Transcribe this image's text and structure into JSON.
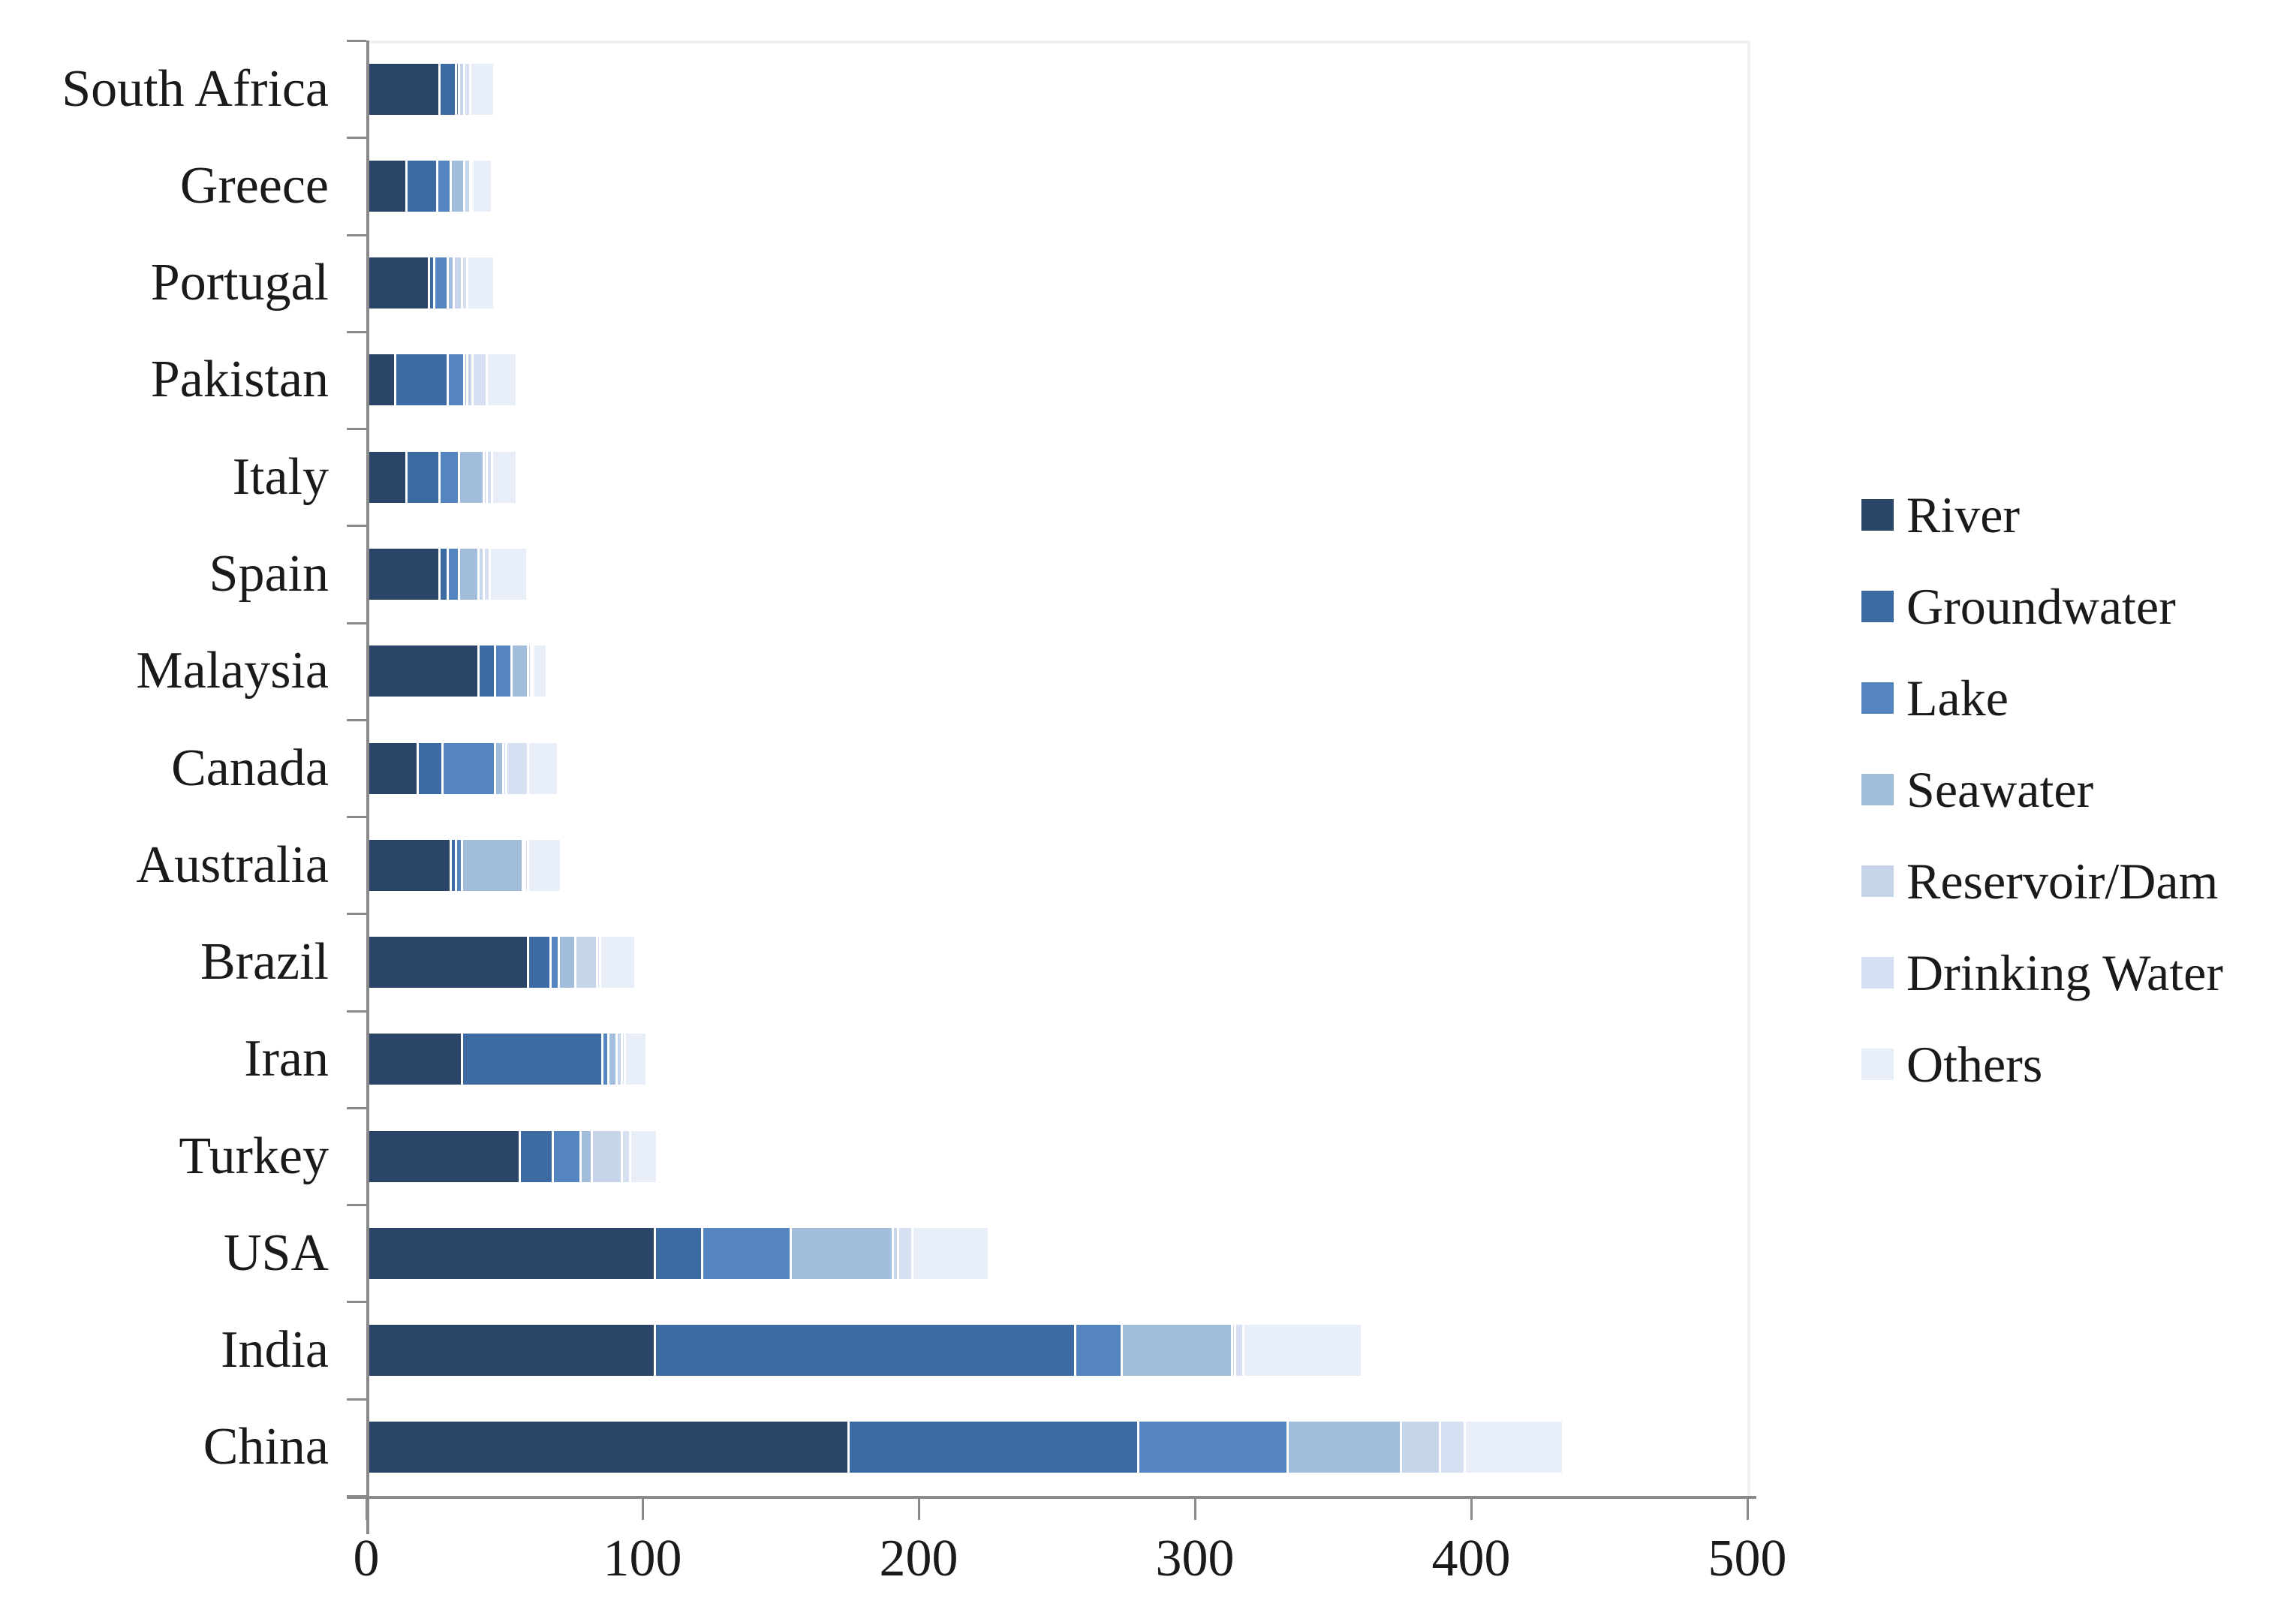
{
  "chart_data": {
    "type": "bar",
    "orientation": "horizontal",
    "stacked": true,
    "title": "",
    "xlabel": "",
    "ylabel": "",
    "xlim": [
      0,
      500
    ],
    "xticks": [
      "0",
      "100",
      "200",
      "300",
      "400",
      "500"
    ],
    "xtick_values": [
      0,
      100,
      200,
      300,
      400,
      500
    ],
    "grid": false,
    "legend_position": "right",
    "categories_top_to_bottom": [
      "South Africa",
      "Greece",
      "Portugal",
      "Pakistan",
      "Italy",
      "Spain",
      "Malaysia",
      "Canada",
      "Australia",
      "Brazil",
      "Iran",
      "Turkey",
      "USA",
      "India",
      "China"
    ],
    "series": [
      {
        "name": "River",
        "color": "#2A4567",
        "values": [
          27,
          15,
          23,
          11,
          15,
          27,
          41,
          19,
          31,
          59,
          35,
          56,
          105,
          105,
          175
        ]
      },
      {
        "name": "Groundwater",
        "color": "#3C6AA3",
        "values": [
          6,
          11,
          2,
          19,
          12,
          3,
          6,
          9,
          2,
          8,
          51,
          12,
          17,
          152,
          105
        ]
      },
      {
        "name": "Lake",
        "color": "#5585BE",
        "values": [
          1,
          5,
          5,
          6,
          7,
          4,
          6,
          19,
          2,
          3,
          2,
          10,
          32,
          17,
          54
        ]
      },
      {
        "name": "Seawater",
        "color": "#A3BDDC",
        "values": [
          0,
          5,
          2,
          1,
          9,
          7,
          6,
          3,
          22,
          6,
          3,
          4,
          37,
          40,
          41
        ]
      },
      {
        "name": "Reservoir/Dam",
        "color": "#C7D5EA",
        "values": [
          2,
          2,
          3,
          2,
          1,
          2,
          1,
          1,
          1,
          8,
          2,
          11,
          2,
          1,
          14
        ]
      },
      {
        "name": "Drinking Water",
        "color": "#D6E0F2",
        "values": [
          2,
          1,
          2,
          5,
          2,
          2,
          1,
          8,
          1,
          1,
          1,
          3,
          5,
          3,
          9
        ]
      },
      {
        "name": "Others",
        "color": "#E8EEF7",
        "values": [
          8,
          6,
          9,
          10,
          8,
          13,
          4,
          10,
          11,
          12,
          7,
          9,
          27,
          42,
          35
        ]
      }
    ],
    "axis_color": "#8a8a8a",
    "plot_border_color": "#f1f1f1",
    "text_color": "#1a1a1a",
    "background_color": "#ffffff"
  }
}
